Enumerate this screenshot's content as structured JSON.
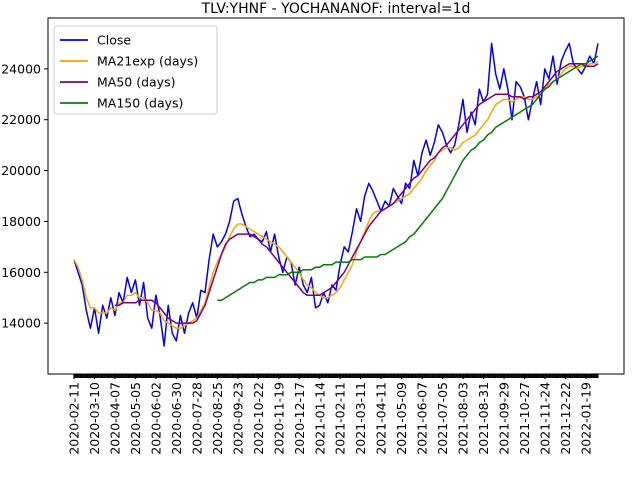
{
  "chart_data": {
    "type": "line",
    "title": "TLV:YHNF - YOCHANANOF: interval=1d",
    "xlabel": "",
    "ylabel": "",
    "legend_position": "top-left",
    "grid": false,
    "x_tick_labels": [
      "2020-02-11",
      "2020-03-10",
      "2020-04-07",
      "2020-05-05",
      "2020-06-02",
      "2020-06-30",
      "2020-07-28",
      "2020-08-25",
      "2020-09-23",
      "2020-10-22",
      "2020-11-19",
      "2020-12-17",
      "2021-01-14",
      "2021-02-11",
      "2021-03-11",
      "2021-04-11",
      "2021-05-09",
      "2021-06-07",
      "2021-07-05",
      "2021-08-03",
      "2021-08-31",
      "2021-09-29",
      "2021-10-27",
      "2021-11-24",
      "2021-12-22",
      "2022-01-19"
    ],
    "y_tick_labels": [
      "14000",
      "16000",
      "18000",
      "20000",
      "22000",
      "24000"
    ],
    "y_ticks": [
      14000,
      16000,
      18000,
      20000,
      22000,
      24000
    ],
    "ylim": [
      12000,
      26000
    ],
    "series": [
      {
        "name": "Close",
        "color": "#0000ff",
        "values": [
          16500,
          16000,
          15500,
          14500,
          13800,
          14600,
          13600,
          14700,
          14200,
          15000,
          14300,
          15200,
          14800,
          15800,
          15200,
          15700,
          14700,
          15600,
          14200,
          13800,
          15100,
          14300,
          13100,
          14700,
          13600,
          13300,
          14300,
          13600,
          14400,
          14800,
          14200,
          15300,
          15200,
          16500,
          17500,
          17000,
          17200,
          17500,
          18000,
          18800,
          18900,
          18300,
          17800,
          17400,
          17500,
          17300,
          17200,
          17600,
          16800,
          17500,
          16600,
          16000,
          16600,
          16400,
          15500,
          16200,
          15500,
          15200,
          15800,
          14600,
          14700,
          15200,
          14800,
          15500,
          15300,
          16300,
          17000,
          16800,
          17600,
          18500,
          18000,
          19000,
          19500,
          19200,
          18800,
          18400,
          18800,
          18600,
          19300,
          19000,
          18700,
          19500,
          19300,
          20400,
          19800,
          20700,
          21200,
          20600,
          21100,
          21800,
          21500,
          21000,
          20700,
          21000,
          21800,
          22800,
          21500,
          22300,
          21800,
          23200,
          22700,
          23000,
          25000,
          23800,
          23200,
          24000,
          23200,
          22000,
          23500,
          23300,
          22900,
          22000,
          22800,
          23500,
          22600,
          24000,
          23600,
          24500,
          23400,
          24300,
          24700,
          25000,
          24200,
          24000,
          23800,
          24100,
          24500,
          24200,
          25000
        ]
      },
      {
        "name": "MA21exp (days)",
        "color": "#ffa500",
        "values": [
          16500,
          16200,
          15700,
          15000,
          14600,
          14600,
          14400,
          14400,
          14400,
          14600,
          14500,
          14800,
          14800,
          15100,
          15100,
          15200,
          15000,
          15000,
          14800,
          14500,
          14500,
          14400,
          14100,
          14000,
          13900,
          13800,
          13800,
          13900,
          14000,
          14100,
          14200,
          14500,
          14800,
          15400,
          16000,
          16400,
          16700,
          17000,
          17400,
          17700,
          17900,
          17900,
          17800,
          17700,
          17600,
          17500,
          17400,
          17300,
          17200,
          17100,
          17000,
          16800,
          16600,
          16400,
          16200,
          16000,
          15700,
          15500,
          15400,
          15200,
          15100,
          15000,
          15000,
          15100,
          15200,
          15400,
          15700,
          16000,
          16300,
          16800,
          17200,
          17600,
          18000,
          18300,
          18400,
          18400,
          18500,
          18600,
          18700,
          18800,
          18900,
          19000,
          19100,
          19300,
          19500,
          19700,
          20000,
          20200,
          20400,
          20700,
          20800,
          20900,
          20900,
          20800,
          20900,
          21100,
          21200,
          21300,
          21400,
          21600,
          21800,
          22000,
          22300,
          22600,
          22700,
          22800,
          22800,
          22700,
          22800,
          22900,
          22900,
          22800,
          22800,
          22900,
          23000,
          23200,
          23400,
          23500,
          23600,
          23800,
          24000,
          24100,
          24100,
          24000,
          24100,
          24100,
          24200,
          24200,
          24300
        ]
      },
      {
        "name": "MA50 (days)",
        "color": "#800080",
        "values": [
          null,
          null,
          null,
          null,
          null,
          null,
          null,
          null,
          null,
          null,
          14700,
          14700,
          14800,
          14800,
          14800,
          14800,
          14900,
          14900,
          14900,
          14900,
          14800,
          14600,
          14400,
          14200,
          14100,
          14000,
          14000,
          14000,
          14000,
          14000,
          14100,
          14400,
          14700,
          15200,
          15700,
          16200,
          16700,
          17100,
          17300,
          17400,
          17500,
          17500,
          17500,
          17500,
          17400,
          17300,
          17100,
          17000,
          16800,
          16600,
          16400,
          16200,
          16000,
          15800,
          15600,
          15400,
          15200,
          15100,
          15100,
          15100,
          15100,
          15200,
          15300,
          15400,
          15600,
          15800,
          16000,
          16300,
          16600,
          16900,
          17200,
          17500,
          17800,
          18000,
          18200,
          18400,
          18500,
          18600,
          18700,
          18900,
          19100,
          19300,
          19500,
          19700,
          19800,
          20000,
          20200,
          20400,
          20500,
          20700,
          20900,
          21000,
          21200,
          21400,
          21600,
          21800,
          22000,
          22200,
          22400,
          22600,
          22700,
          22800,
          22900,
          23000,
          23000,
          23000,
          23000,
          22900,
          22900,
          22900,
          22800,
          22900,
          22900,
          23000,
          23100,
          23300,
          23500,
          23700,
          23900,
          24000,
          24100,
          24200,
          24200,
          24200,
          24200,
          24100,
          24100,
          24100,
          24200
        ]
      },
      {
        "name": "MA150 (days)",
        "color": "#008000",
        "values": [
          null,
          null,
          null,
          null,
          null,
          null,
          null,
          null,
          null,
          null,
          null,
          null,
          null,
          null,
          null,
          null,
          null,
          null,
          null,
          null,
          null,
          null,
          null,
          null,
          null,
          null,
          null,
          null,
          null,
          null,
          null,
          null,
          null,
          null,
          null,
          14900,
          14900,
          15000,
          15100,
          15200,
          15300,
          15400,
          15500,
          15600,
          15600,
          15700,
          15700,
          15800,
          15800,
          15800,
          15900,
          15900,
          15900,
          16000,
          16000,
          16000,
          16100,
          16100,
          16100,
          16200,
          16200,
          16300,
          16300,
          16300,
          16400,
          16400,
          16400,
          16400,
          16500,
          16500,
          16500,
          16600,
          16600,
          16600,
          16600,
          16700,
          16700,
          16800,
          16900,
          17000,
          17100,
          17200,
          17400,
          17500,
          17700,
          17900,
          18100,
          18300,
          18500,
          18700,
          18900,
          19200,
          19500,
          19800,
          20100,
          20400,
          20600,
          20800,
          20900,
          21100,
          21200,
          21400,
          21500,
          21700,
          21800,
          21900,
          22000,
          22100,
          22200,
          22300,
          22400,
          22500,
          22600,
          22800,
          23000,
          23200,
          23300,
          23500,
          23600,
          23700,
          23800,
          23900,
          24000,
          24100,
          24200,
          24200,
          24300,
          24400,
          24500
        ]
      }
    ]
  }
}
